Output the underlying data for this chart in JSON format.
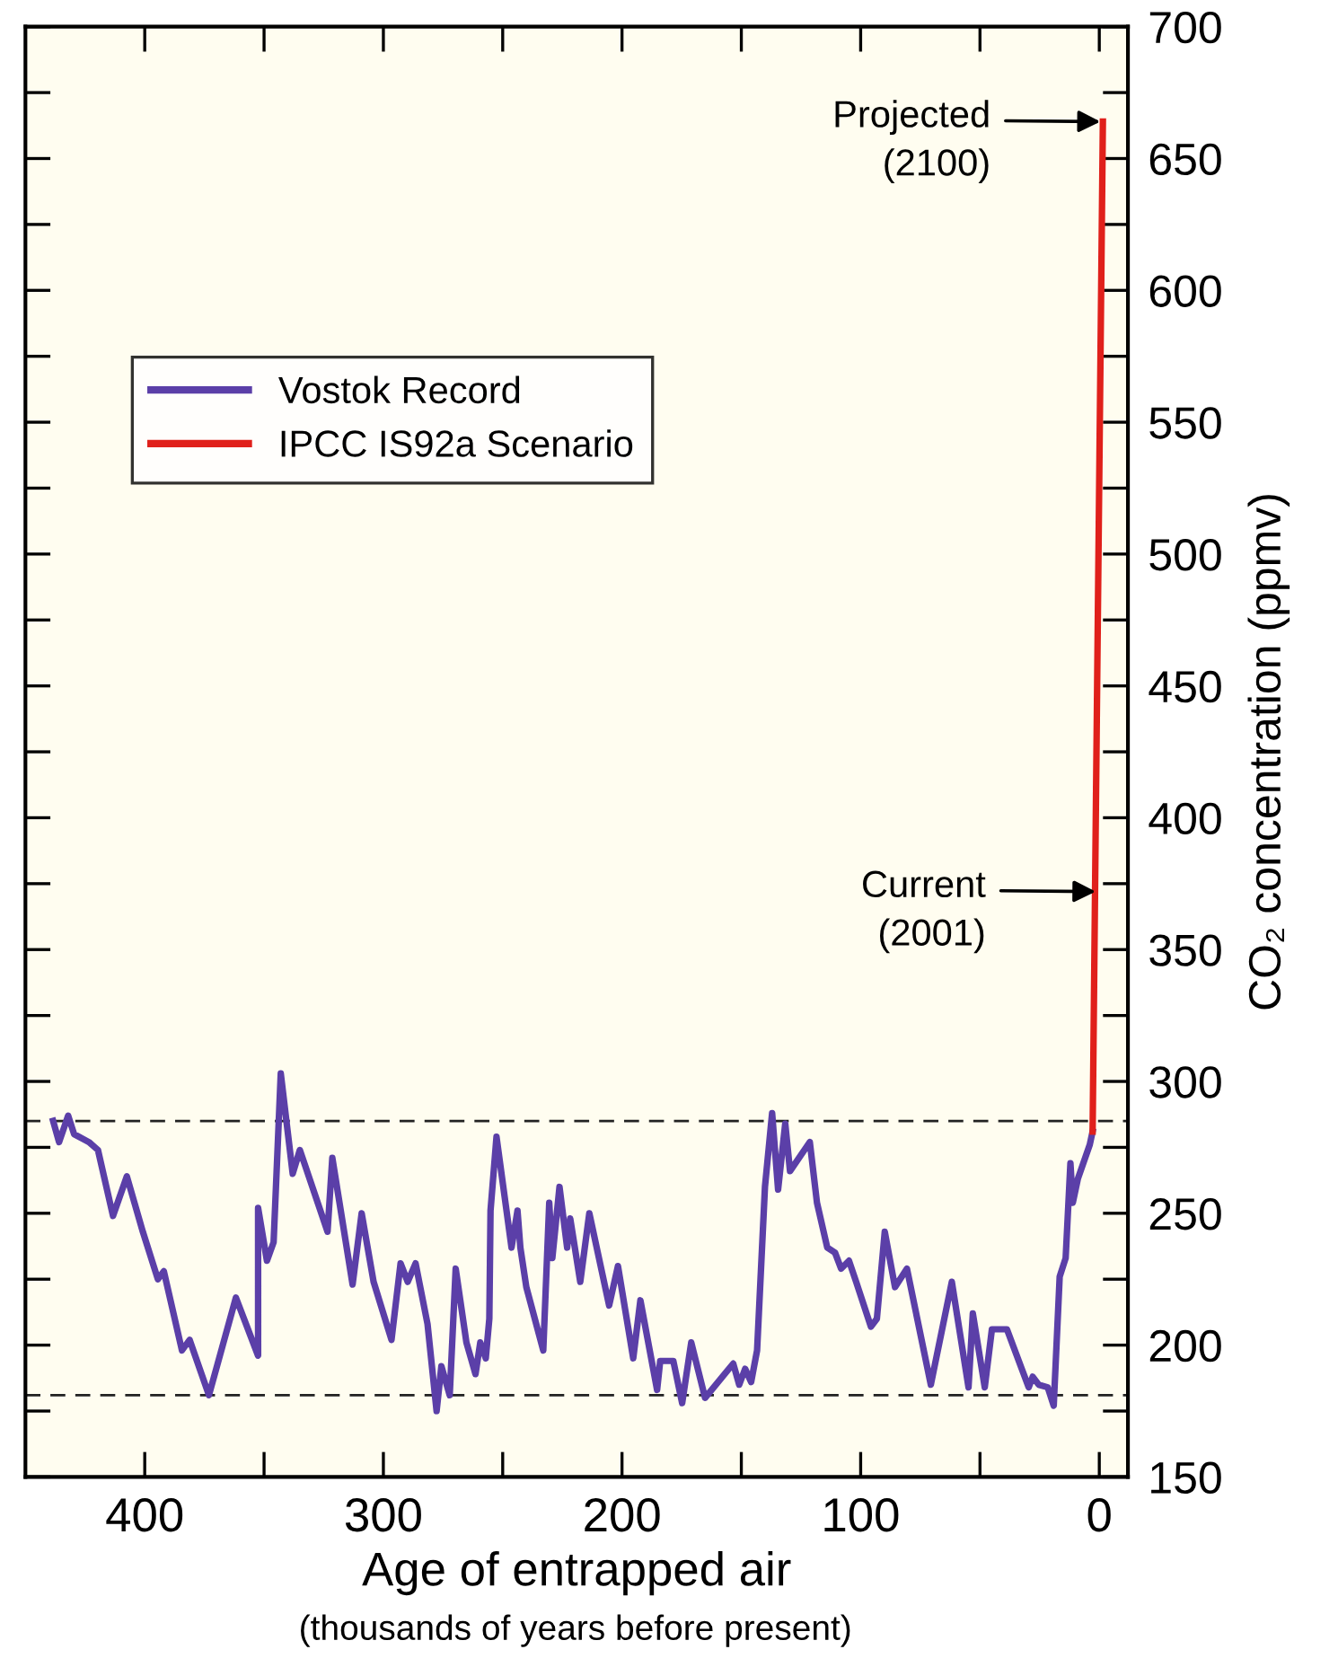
{
  "chart_data": {
    "type": "line",
    "xlabel": "Age of entrapped air",
    "ylabel": "CO₂ concentration (ppmv)",
    "series": [
      {
        "name": "Vostok Record",
        "color": "#5b3fa8",
        "x": [
          438.4,
          435.9,
          432.1,
          429.6,
          423.4,
          419.6,
          413.3,
          407.5,
          400.8,
          394.5,
          392,
          384.4,
          381.2,
          373.1,
          361.8,
          352.5,
          352.5,
          348.8,
          346,
          343,
          338,
          335,
          323.4,
          321.4,
          312.9,
          309.1,
          304.1,
          296.6,
          292.8,
          289.8,
          286.5,
          281.5,
          277.7,
          275.7,
          272.2,
          269.7,
          265.2,
          261.4,
          259.4,
          257.1,
          255.6,
          255.1,
          252.6,
          246.3,
          243.8,
          242.6,
          240.1,
          233,
          230.5,
          229.2,
          226.2,
          223,
          221.7,
          217.5,
          213.7,
          205.4,
          201.7,
          195.3,
          192.3,
          185.3,
          184,
          178.5,
          174.8,
          171,
          165.2,
          153.4,
          150.9,
          148.4,
          145.9,
          143.4,
          140.1,
          137.1,
          134.6,
          131.6,
          129.6,
          121.3,
          118.3,
          114,
          110.7,
          108.2,
          104.9,
          101.9,
          95.7,
          93.2,
          89.9,
          85.6,
          80.6,
          70.6,
          61.8,
          54.8,
          53,
          48,
          45,
          38.7,
          29.6,
          27.9,
          25.4,
          21.6,
          19.1,
          16.6,
          14.1,
          12.1,
          11.1,
          9,
          4,
          2.8
        ],
        "values": [
          285,
          277,
          287,
          280,
          277,
          274,
          249,
          264,
          243,
          225,
          228,
          198,
          202,
          181,
          218,
          196,
          252,
          232,
          239,
          303,
          265,
          274,
          243,
          271,
          223,
          250,
          224,
          202,
          231,
          224,
          231,
          208,
          175,
          192,
          181,
          229,
          201,
          189,
          201,
          195,
          210,
          251,
          279,
          237,
          251,
          237,
          222,
          198,
          254,
          233,
          260,
          237,
          248,
          224,
          250,
          215,
          230,
          195,
          217,
          183,
          194,
          194,
          178,
          201,
          180,
          193,
          185,
          191,
          186,
          198,
          260,
          288,
          259,
          284,
          266,
          277,
          254,
          237,
          235,
          229,
          232,
          224,
          207,
          210,
          243,
          222,
          229,
          185,
          224,
          184,
          212,
          184,
          206,
          206,
          184,
          188,
          185,
          184,
          177,
          226,
          233,
          269,
          254,
          263,
          276,
          281
        ]
      },
      {
        "name": "IPCC IS92a Scenario",
        "color": "#e0201b",
        "x": [
          2.8,
          -1.5
        ],
        "values": [
          281,
          664
        ]
      }
    ],
    "xlim": [
      450,
      -12
    ],
    "xticks": [
      {
        "value": 400,
        "label": "400"
      },
      {
        "value": 350,
        "label": null
      },
      {
        "value": 300,
        "label": "300"
      },
      {
        "value": 250,
        "label": null
      },
      {
        "value": 200,
        "label": "200"
      },
      {
        "value": 150,
        "label": null
      },
      {
        "value": 100,
        "label": "100"
      },
      {
        "value": 50,
        "label": null
      },
      {
        "value": 0,
        "label": "0"
      }
    ],
    "ylim": [
      150,
      700
    ],
    "yticks": [
      150,
      {
        "value": 175,
        "label": null
      },
      200,
      {
        "value": 225,
        "label": null
      },
      250,
      {
        "value": 275,
        "label": null
      },
      300,
      {
        "value": 325,
        "label": null
      },
      350,
      {
        "value": 375,
        "label": null
      },
      400,
      {
        "value": 425,
        "label": null
      },
      450,
      {
        "value": 475,
        "label": null
      },
      500,
      {
        "value": 525,
        "label": null
      },
      550,
      {
        "value": 575,
        "label": null
      },
      600,
      {
        "value": 625,
        "label": null
      },
      650,
      {
        "value": 675,
        "label": null
      },
      700
    ],
    "ref_lines": [
      {
        "axis": "y",
        "value": 285,
        "label": null,
        "color": "#222222",
        "line_style": "dashed"
      },
      {
        "axis": "y",
        "value": 181,
        "label": null,
        "color": "#222222",
        "line_style": "dashed"
      }
    ],
    "annotations": [
      {
        "text": "Projected\n(2100)",
        "x": -1.5,
        "y": 664
      },
      {
        "text": "Current\n(2001)",
        "x": 0.5,
        "y": 372
      },
      "(thousands of years before present)"
    ],
    "legend": "upper left",
    "grid": false,
    "line_style": "solid",
    "marker": "none"
  }
}
